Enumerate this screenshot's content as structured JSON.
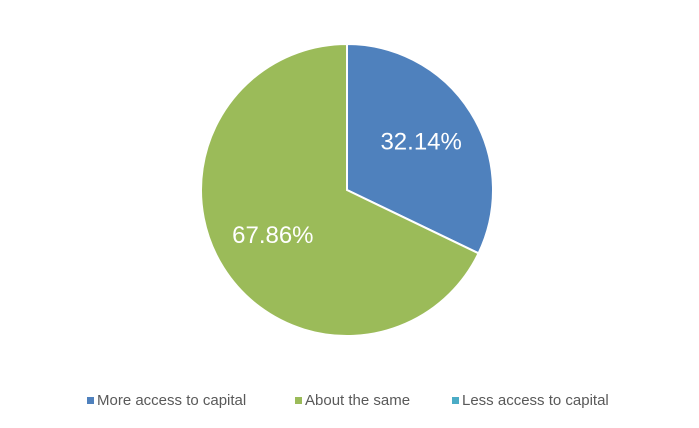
{
  "chart_data": {
    "type": "pie",
    "categories": [
      "More access to capital",
      "About the same",
      "Less access to capital"
    ],
    "values": [
      32.14,
      67.86,
      0
    ],
    "value_labels": [
      "32.14%",
      "67.86%",
      null
    ],
    "colors": [
      "#4f81bd",
      "#9bbb59",
      "#4bacc6"
    ],
    "legend": "bottom"
  }
}
